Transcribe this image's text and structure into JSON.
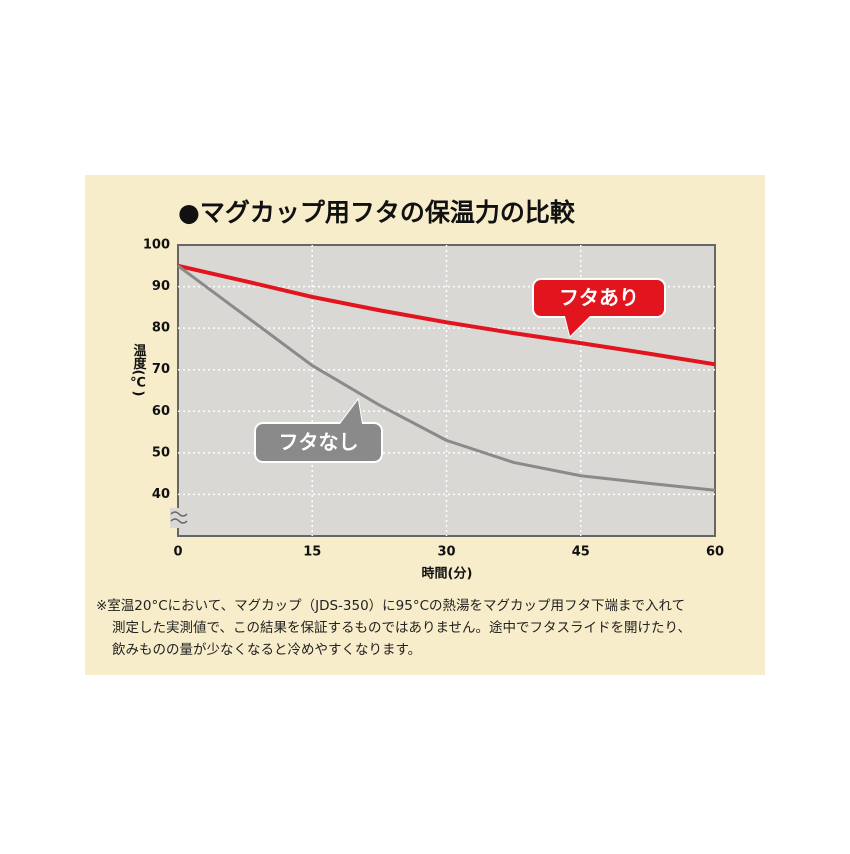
{
  "chart_data": {
    "type": "line",
    "title": "●マグカップ用フタの保温力の比較",
    "y_label": "温度(℃)",
    "x_label": "時間(分)",
    "x": [
      0,
      7.5,
      15,
      22.5,
      30,
      37.5,
      45,
      52.5,
      60
    ],
    "series": [
      {
        "name": "フタあり",
        "color": "#e2141e",
        "values": [
          95,
          91.3,
          87.5,
          84.3,
          81.4,
          78.8,
          76.4,
          73.9,
          71.3
        ]
      },
      {
        "name": "フタなし",
        "color": "#8a8a8a",
        "values": [
          95,
          83,
          71,
          61.5,
          53,
          47.7,
          44.5,
          42.7,
          41
        ]
      }
    ],
    "xlim": [
      0,
      60
    ],
    "xticks": [
      0,
      15,
      30,
      45,
      60
    ],
    "ylim": [
      30,
      100
    ],
    "yticks": [
      40,
      50,
      60,
      70,
      80,
      90,
      100
    ],
    "grid": true,
    "notes": [
      "※室温20°Cにおいて、マグカップ（JDS-350）に95°Cの熱湯をマグカップ用フタ下端まで入れて",
      "測定した実測値で、この結果を保証するものではありません。途中でフタスライドを開けたり、",
      "飲みものの量が少なくなると冷めやすくなります。"
    ]
  }
}
